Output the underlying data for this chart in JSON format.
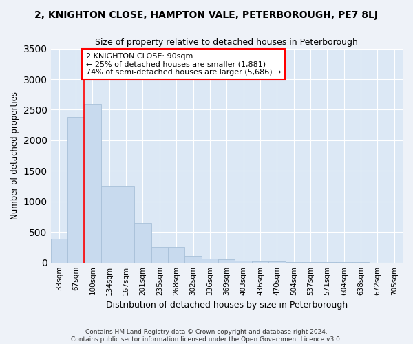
{
  "title": "2, KNIGHTON CLOSE, HAMPTON VALE, PETERBOROUGH, PE7 8LJ",
  "subtitle": "Size of property relative to detached houses in Peterborough",
  "xlabel": "Distribution of detached houses by size in Peterborough",
  "ylabel": "Number of detached properties",
  "categories": [
    "33sqm",
    "67sqm",
    "100sqm",
    "134sqm",
    "167sqm",
    "201sqm",
    "235sqm",
    "268sqm",
    "302sqm",
    "336sqm",
    "369sqm",
    "403sqm",
    "436sqm",
    "470sqm",
    "504sqm",
    "537sqm",
    "571sqm",
    "604sqm",
    "638sqm",
    "672sqm",
    "705sqm"
  ],
  "values": [
    390,
    2380,
    2600,
    1250,
    1250,
    650,
    260,
    260,
    110,
    60,
    50,
    35,
    20,
    15,
    10,
    7,
    5,
    4,
    3,
    2,
    2
  ],
  "bar_color": "#c8daee",
  "bar_edge_color": "#a8c0d8",
  "red_line_x": 2,
  "annotation_title": "2 KNIGHTON CLOSE: 90sqm",
  "annotation_line1": "← 25% of detached houses are smaller (1,881)",
  "annotation_line2": "74% of semi-detached houses are larger (5,686) →",
  "ylim": [
    0,
    3500
  ],
  "yticks": [
    0,
    500,
    1000,
    1500,
    2000,
    2500,
    3000,
    3500
  ],
  "fig_bg_color": "#eef2f8",
  "ax_bg_color": "#dce8f5",
  "grid_color": "#ffffff",
  "footer_line1": "Contains HM Land Registry data © Crown copyright and database right 2024.",
  "footer_line2": "Contains public sector information licensed under the Open Government Licence v3.0."
}
